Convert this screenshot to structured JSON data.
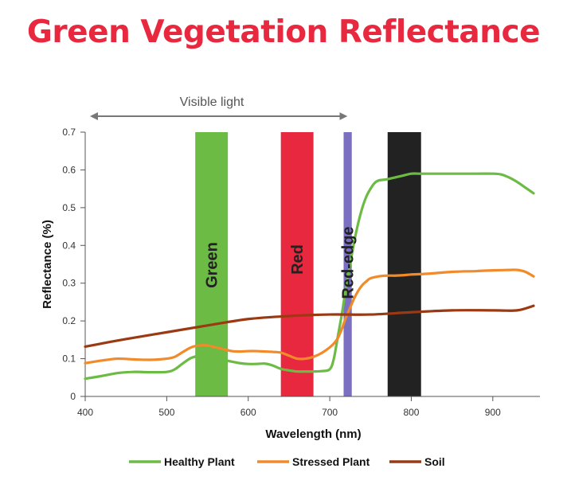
{
  "title": "Green Vegetation Reflectance",
  "colors": {
    "title": "#e8283e",
    "healthy": "#6cbb45",
    "stressed": "#f08a2a",
    "soil": "#9b3a12",
    "green_band": "#6cbb45",
    "red_band": "#e8283e",
    "red_edge_band": "#7a6fc0",
    "nir_band": "#222222",
    "axis": "#555555",
    "visible_arrow": "#777777"
  },
  "visible_light_label": "Visible light",
  "visible_light_range": [
    400,
    710
  ],
  "bands": [
    {
      "label": "Green",
      "from": 535,
      "to": 575,
      "color_key": "green_band"
    },
    {
      "label": "Red",
      "from": 640,
      "to": 680,
      "color_key": "red_band"
    },
    {
      "label": "Red-edge",
      "from": 717,
      "to": 727,
      "color_key": "red_edge_band"
    },
    {
      "label": "",
      "from": 771,
      "to": 812,
      "color_key": "nir_band"
    }
  ],
  "legend": [
    {
      "label": "Healthy Plant",
      "color_key": "healthy"
    },
    {
      "label": "Stressed Plant",
      "color_key": "stressed"
    },
    {
      "label": "Soil",
      "color_key": "soil"
    }
  ],
  "chart_data": {
    "type": "line",
    "xlabel": "Wavelength (nm)",
    "ylabel": "Reflectance (%)",
    "xlim": [
      400,
      950
    ],
    "ylim": [
      0,
      0.7
    ],
    "xticks": [
      400,
      500,
      600,
      700,
      800,
      900
    ],
    "yticks": [
      0,
      0.1,
      0.2,
      0.3,
      0.4,
      0.5,
      0.6,
      0.7
    ],
    "ytick_labels": [
      "0",
      "0.1",
      "0.2",
      "0.3",
      "0.4",
      "0.5",
      "0.6",
      "0.7"
    ],
    "grid": false,
    "legend_position": "bottom",
    "series": [
      {
        "name": "Healthy Plant",
        "color_key": "healthy",
        "x": [
          400,
          420,
          440,
          460,
          480,
          500,
          510,
          520,
          530,
          540,
          550,
          560,
          570,
          580,
          590,
          600,
          610,
          620,
          630,
          640,
          650,
          660,
          670,
          680,
          690,
          700,
          705,
          710,
          715,
          720,
          725,
          730,
          735,
          740,
          745,
          750,
          755,
          760,
          770,
          780,
          790,
          800,
          810,
          820,
          850,
          880,
          900,
          910,
          920,
          930,
          940,
          950
        ],
        "y": [
          0.047,
          0.054,
          0.062,
          0.065,
          0.064,
          0.065,
          0.072,
          0.088,
          0.102,
          0.107,
          0.106,
          0.102,
          0.097,
          0.092,
          0.088,
          0.086,
          0.086,
          0.087,
          0.082,
          0.073,
          0.069,
          0.066,
          0.066,
          0.066,
          0.067,
          0.072,
          0.1,
          0.16,
          0.22,
          0.29,
          0.35,
          0.41,
          0.46,
          0.5,
          0.53,
          0.55,
          0.565,
          0.572,
          0.575,
          0.58,
          0.585,
          0.59,
          0.59,
          0.59,
          0.59,
          0.59,
          0.59,
          0.588,
          0.58,
          0.568,
          0.553,
          0.538
        ]
      },
      {
        "name": "Stressed Plant",
        "color_key": "stressed",
        "x": [
          400,
          420,
          440,
          460,
          480,
          500,
          510,
          520,
          530,
          540,
          550,
          560,
          570,
          580,
          590,
          600,
          610,
          620,
          630,
          640,
          650,
          660,
          670,
          680,
          690,
          700,
          705,
          710,
          715,
          720,
          725,
          730,
          735,
          740,
          745,
          750,
          760,
          770,
          780,
          790,
          800,
          820,
          850,
          880,
          900,
          920,
          930,
          940,
          950
        ],
        "y": [
          0.088,
          0.095,
          0.1,
          0.098,
          0.097,
          0.1,
          0.105,
          0.118,
          0.13,
          0.135,
          0.135,
          0.13,
          0.125,
          0.12,
          0.119,
          0.12,
          0.12,
          0.119,
          0.118,
          0.116,
          0.108,
          0.1,
          0.1,
          0.105,
          0.115,
          0.13,
          0.14,
          0.155,
          0.18,
          0.21,
          0.235,
          0.26,
          0.28,
          0.295,
          0.305,
          0.313,
          0.318,
          0.32,
          0.32,
          0.321,
          0.323,
          0.325,
          0.33,
          0.332,
          0.334,
          0.335,
          0.335,
          0.33,
          0.318
        ]
      },
      {
        "name": "Soil",
        "color_key": "soil",
        "x": [
          400,
          450,
          500,
          550,
          600,
          650,
          700,
          750,
          800,
          850,
          900,
          930,
          950
        ],
        "y": [
          0.132,
          0.152,
          0.17,
          0.188,
          0.205,
          0.213,
          0.217,
          0.217,
          0.223,
          0.228,
          0.228,
          0.228,
          0.24
        ]
      }
    ]
  }
}
